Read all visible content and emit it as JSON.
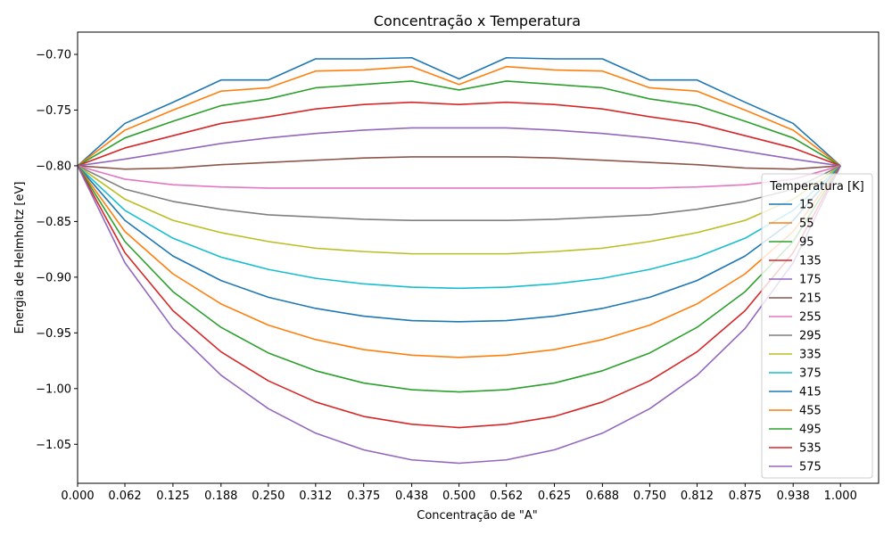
{
  "chart_data": {
    "type": "line",
    "title": "Concentração x Temperatura",
    "xlabel": "Concentração de \"A\"",
    "ylabel": "Energia de Helmholtz [eV]",
    "xlim": [
      0.0,
      1.05
    ],
    "ylim": [
      -1.085,
      -0.68
    ],
    "x": [
      0.0,
      0.062,
      0.125,
      0.188,
      0.25,
      0.312,
      0.375,
      0.438,
      0.5,
      0.562,
      0.625,
      0.688,
      0.75,
      0.812,
      0.875,
      0.938,
      1.0
    ],
    "x_tick_labels": [
      "0.000",
      "0.062",
      "0.125",
      "0.188",
      "0.250",
      "0.312",
      "0.375",
      "0.438",
      "0.500",
      "0.562",
      "0.625",
      "0.688",
      "0.750",
      "0.812",
      "0.875",
      "0.938",
      "1.000"
    ],
    "y_ticks": [
      -0.7,
      -0.75,
      -0.8,
      -0.85,
      -0.9,
      -0.95,
      -1.0,
      -1.05
    ],
    "y_tick_labels": [
      "−0.70",
      "−0.75",
      "−0.80",
      "−0.85",
      "−0.90",
      "−0.95",
      "−1.00",
      "−1.05"
    ],
    "legend": {
      "title": "Temperatura [K]",
      "position": "right"
    },
    "series": [
      {
        "name": "15",
        "color": "#1f77b4",
        "values": [
          -0.8,
          -0.762,
          -0.743,
          -0.723,
          -0.723,
          -0.704,
          -0.704,
          -0.703,
          -0.722,
          -0.703,
          -0.704,
          -0.704,
          -0.723,
          -0.723,
          -0.743,
          -0.762,
          -0.8
        ]
      },
      {
        "name": "55",
        "color": "#ff7f0e",
        "values": [
          -0.8,
          -0.768,
          -0.75,
          -0.733,
          -0.73,
          -0.715,
          -0.714,
          -0.711,
          -0.727,
          -0.711,
          -0.714,
          -0.715,
          -0.73,
          -0.733,
          -0.75,
          -0.768,
          -0.8
        ]
      },
      {
        "name": "95",
        "color": "#2ca02c",
        "values": [
          -0.8,
          -0.775,
          -0.76,
          -0.746,
          -0.74,
          -0.73,
          -0.727,
          -0.724,
          -0.732,
          -0.724,
          -0.727,
          -0.73,
          -0.74,
          -0.746,
          -0.76,
          -0.775,
          -0.8
        ]
      },
      {
        "name": "135",
        "color": "#d62728",
        "values": [
          -0.8,
          -0.784,
          -0.773,
          -0.762,
          -0.756,
          -0.749,
          -0.745,
          -0.743,
          -0.745,
          -0.743,
          -0.745,
          -0.749,
          -0.756,
          -0.762,
          -0.773,
          -0.784,
          -0.8
        ]
      },
      {
        "name": "175",
        "color": "#9467bd",
        "values": [
          -0.8,
          -0.794,
          -0.787,
          -0.78,
          -0.775,
          -0.771,
          -0.768,
          -0.766,
          -0.766,
          -0.766,
          -0.768,
          -0.771,
          -0.775,
          -0.78,
          -0.787,
          -0.794,
          -0.8
        ]
      },
      {
        "name": "215",
        "color": "#8c564b",
        "values": [
          -0.8,
          -0.803,
          -0.802,
          -0.799,
          -0.797,
          -0.795,
          -0.793,
          -0.792,
          -0.792,
          -0.792,
          -0.793,
          -0.795,
          -0.797,
          -0.799,
          -0.802,
          -0.803,
          -0.8
        ]
      },
      {
        "name": "255",
        "color": "#e377c2",
        "values": [
          -0.8,
          -0.812,
          -0.817,
          -0.819,
          -0.82,
          -0.82,
          -0.82,
          -0.82,
          -0.82,
          -0.82,
          -0.82,
          -0.82,
          -0.82,
          -0.819,
          -0.817,
          -0.812,
          -0.8
        ]
      },
      {
        "name": "295",
        "color": "#7f7f7f",
        "values": [
          -0.8,
          -0.821,
          -0.832,
          -0.839,
          -0.844,
          -0.846,
          -0.848,
          -0.849,
          -0.849,
          -0.849,
          -0.848,
          -0.846,
          -0.844,
          -0.839,
          -0.832,
          -0.821,
          -0.8
        ]
      },
      {
        "name": "335",
        "color": "#bcbd22",
        "values": [
          -0.8,
          -0.83,
          -0.849,
          -0.86,
          -0.868,
          -0.874,
          -0.877,
          -0.879,
          -0.879,
          -0.879,
          -0.877,
          -0.874,
          -0.868,
          -0.86,
          -0.849,
          -0.83,
          -0.8
        ]
      },
      {
        "name": "375",
        "color": "#17becf",
        "values": [
          -0.8,
          -0.84,
          -0.865,
          -0.882,
          -0.893,
          -0.901,
          -0.906,
          -0.909,
          -0.91,
          -0.909,
          -0.906,
          -0.901,
          -0.893,
          -0.882,
          -0.865,
          -0.84,
          -0.8
        ]
      },
      {
        "name": "415",
        "color": "#1f77b4",
        "values": [
          -0.8,
          -0.849,
          -0.881,
          -0.903,
          -0.918,
          -0.928,
          -0.935,
          -0.939,
          -0.94,
          -0.939,
          -0.935,
          -0.928,
          -0.918,
          -0.903,
          -0.881,
          -0.849,
          -0.8
        ]
      },
      {
        "name": "455",
        "color": "#ff7f0e",
        "values": [
          -0.8,
          -0.859,
          -0.897,
          -0.924,
          -0.943,
          -0.956,
          -0.965,
          -0.97,
          -0.972,
          -0.97,
          -0.965,
          -0.956,
          -0.943,
          -0.924,
          -0.897,
          -0.859,
          -0.8
        ]
      },
      {
        "name": "495",
        "color": "#2ca02c",
        "values": [
          -0.8,
          -0.868,
          -0.913,
          -0.945,
          -0.968,
          -0.984,
          -0.995,
          -1.001,
          -1.003,
          -1.001,
          -0.995,
          -0.984,
          -0.968,
          -0.945,
          -0.913,
          -0.868,
          -0.8
        ]
      },
      {
        "name": "535",
        "color": "#d62728",
        "values": [
          -0.8,
          -0.878,
          -0.93,
          -0.967,
          -0.993,
          -1.012,
          -1.025,
          -1.032,
          -1.035,
          -1.032,
          -1.025,
          -1.012,
          -0.993,
          -0.967,
          -0.93,
          -0.878,
          -0.8
        ]
      },
      {
        "name": "575",
        "color": "#9467bd",
        "values": [
          -0.8,
          -0.887,
          -0.946,
          -0.988,
          -1.018,
          -1.04,
          -1.055,
          -1.064,
          -1.067,
          -1.064,
          -1.055,
          -1.04,
          -1.018,
          -0.988,
          -0.946,
          -0.887,
          -0.8
        ]
      }
    ]
  }
}
